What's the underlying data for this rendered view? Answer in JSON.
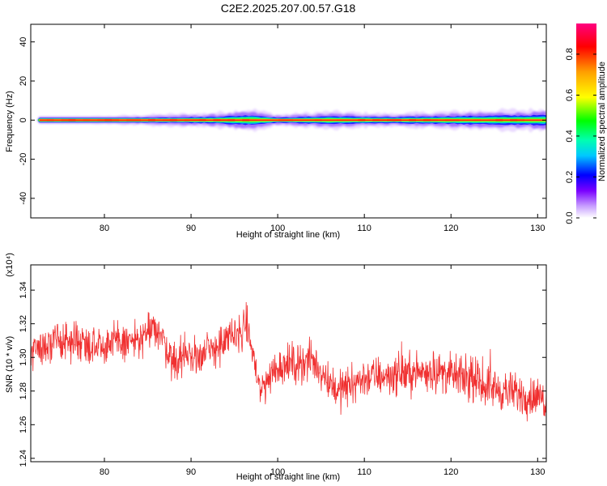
{
  "title": "C2E2.2025.207.00.57.G18",
  "colors": {
    "snr_line": "#f03030",
    "frame": "#000000",
    "background": "#ffffff"
  },
  "chart_data": [
    {
      "type": "heatmap",
      "name": "spectrogram",
      "xlabel": "Height of straight line (km)",
      "ylabel": "Frequency (Hz)",
      "xlim": [
        71.5,
        131
      ],
      "ylim": [
        -50,
        49
      ],
      "x_ticks": [
        80,
        90,
        100,
        110,
        120,
        130
      ],
      "y_ticks": [
        -40,
        -20,
        0,
        20,
        40
      ],
      "x_start": 72.5,
      "x_end": 131,
      "band_halfwidth_hz": [
        {
          "x": 72.5,
          "hz": 1.2
        },
        {
          "x": 80,
          "hz": 1.5
        },
        {
          "x": 86,
          "hz": 2.3
        },
        {
          "x": 92,
          "hz": 2.8
        },
        {
          "x": 97,
          "hz": 4.5
        },
        {
          "x": 100,
          "hz": 2.2
        },
        {
          "x": 106,
          "hz": 3.5
        },
        {
          "x": 113,
          "hz": 2.6
        },
        {
          "x": 120,
          "hz": 3.5
        },
        {
          "x": 131,
          "hz": 4.5
        }
      ],
      "colorbar": {
        "label": "Normalized spectral amplitude",
        "range": [
          0,
          0.95
        ],
        "ticks": [
          0.0,
          0.2,
          0.4,
          0.6,
          0.8
        ]
      }
    },
    {
      "type": "line",
      "name": "snr",
      "xlabel": "Height of straight line (km)",
      "ylabel": "SNR (10 * v/v)",
      "y_multiplier": "(x10⁴)",
      "xlim": [
        71.5,
        131
      ],
      "ylim": [
        1.238,
        1.355
      ],
      "x_ticks": [
        80,
        90,
        100,
        110,
        120,
        130
      ],
      "y_ticks": [
        1.24,
        1.26,
        1.28,
        1.3,
        1.32,
        1.34
      ],
      "trend": [
        {
          "x": 71.5,
          "y": 1.305
        },
        {
          "x": 76,
          "y": 1.31
        },
        {
          "x": 80,
          "y": 1.308
        },
        {
          "x": 84,
          "y": 1.31
        },
        {
          "x": 86,
          "y": 1.318
        },
        {
          "x": 88,
          "y": 1.298
        },
        {
          "x": 92,
          "y": 1.303
        },
        {
          "x": 96.5,
          "y": 1.318
        },
        {
          "x": 98,
          "y": 1.28
        },
        {
          "x": 100,
          "y": 1.295
        },
        {
          "x": 104,
          "y": 1.298
        },
        {
          "x": 107,
          "y": 1.28
        },
        {
          "x": 110,
          "y": 1.288
        },
        {
          "x": 114,
          "y": 1.29
        },
        {
          "x": 118,
          "y": 1.292
        },
        {
          "x": 122,
          "y": 1.287
        },
        {
          "x": 126,
          "y": 1.28
        },
        {
          "x": 131,
          "y": 1.275
        }
      ],
      "noise_amplitude": 0.011,
      "sample_count": 1400
    }
  ]
}
